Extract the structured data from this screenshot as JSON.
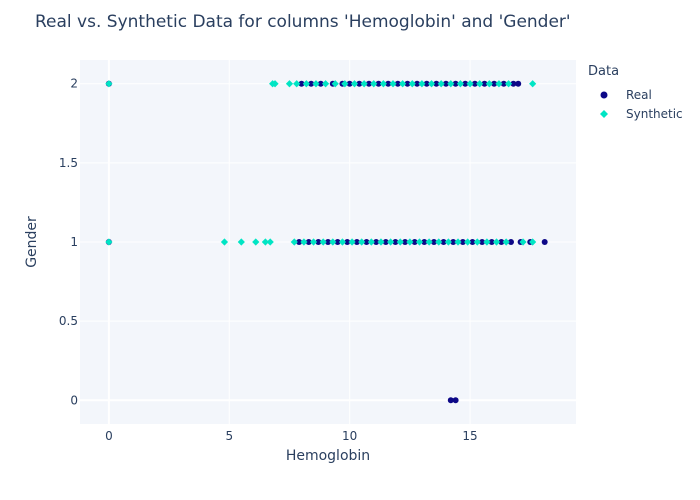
{
  "chart_data": {
    "type": "scatter",
    "title": "Real vs. Synthetic Data for columns 'Hemoglobin' and 'Gender'",
    "xlabel": "Hemoglobin",
    "ylabel": "Gender",
    "xlim": [
      -1.2,
      19.4
    ],
    "ylim": [
      -0.15,
      2.15
    ],
    "xticks": [
      0,
      5,
      10,
      15
    ],
    "yticks": [
      0,
      0.5,
      1,
      1.5,
      2
    ],
    "ytick_labels": [
      "0",
      "0.5",
      "1",
      "1.5",
      "2"
    ],
    "legend_title": "Data",
    "legend_position": "top-right",
    "series": [
      {
        "name": "Real",
        "color": "#0d0887",
        "marker": "circle",
        "x": [
          0.0,
          0.0,
          8.0,
          8.4,
          8.8,
          9.3,
          9.7,
          10.0,
          10.4,
          10.8,
          11.2,
          11.6,
          12.0,
          12.4,
          12.8,
          13.2,
          13.6,
          14.0,
          14.4,
          14.8,
          15.2,
          15.6,
          16.0,
          16.4,
          16.8,
          17.0,
          7.9,
          8.3,
          8.7,
          9.1,
          9.5,
          9.9,
          10.3,
          10.7,
          11.1,
          11.5,
          11.9,
          12.3,
          12.7,
          13.1,
          13.5,
          13.9,
          14.3,
          14.7,
          15.1,
          15.5,
          15.9,
          16.3,
          16.7,
          17.1,
          17.5,
          18.1,
          14.2,
          14.4
        ],
        "y": [
          2,
          1,
          2,
          2,
          2,
          2,
          2,
          2,
          2,
          2,
          2,
          2,
          2,
          2,
          2,
          2,
          2,
          2,
          2,
          2,
          2,
          2,
          2,
          2,
          2,
          2,
          1,
          1,
          1,
          1,
          1,
          1,
          1,
          1,
          1,
          1,
          1,
          1,
          1,
          1,
          1,
          1,
          1,
          1,
          1,
          1,
          1,
          1,
          1,
          1,
          1,
          1,
          0,
          0
        ]
      },
      {
        "name": "Synthetic",
        "color": "#00e5c4",
        "marker": "diamond",
        "x": [
          0.0,
          0.0,
          6.8,
          6.9,
          7.5,
          7.8,
          8.2,
          8.6,
          9.0,
          9.4,
          9.8,
          10.2,
          10.6,
          11.0,
          11.4,
          11.8,
          12.2,
          12.6,
          13.0,
          13.4,
          13.8,
          14.2,
          14.6,
          15.0,
          15.4,
          15.8,
          16.2,
          16.6,
          17.6,
          4.8,
          5.5,
          6.1,
          6.5,
          6.7,
          7.7,
          8.1,
          8.5,
          8.9,
          9.3,
          9.7,
          10.1,
          10.5,
          10.9,
          11.3,
          11.7,
          12.1,
          12.5,
          12.9,
          13.3,
          13.7,
          14.1,
          14.5,
          14.9,
          15.3,
          15.7,
          16.1,
          16.5,
          17.2,
          17.6
        ],
        "y": [
          2,
          1,
          2,
          2,
          2,
          2,
          2,
          2,
          2,
          2,
          2,
          2,
          2,
          2,
          2,
          2,
          2,
          2,
          2,
          2,
          2,
          2,
          2,
          2,
          2,
          2,
          2,
          2,
          2,
          1,
          1,
          1,
          1,
          1,
          1,
          1,
          1,
          1,
          1,
          1,
          1,
          1,
          1,
          1,
          1,
          1,
          1,
          1,
          1,
          1,
          1,
          1,
          1,
          1,
          1,
          1,
          1,
          1,
          1
        ]
      }
    ]
  }
}
